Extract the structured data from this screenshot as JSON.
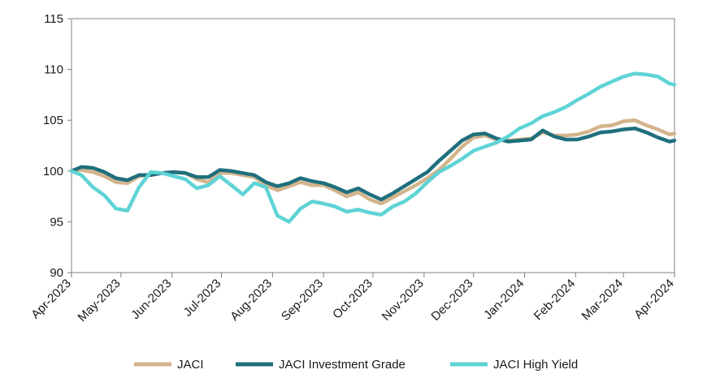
{
  "chart_data": {
    "type": "line",
    "title": "",
    "xlabel": "",
    "ylabel": "",
    "ylim": [
      90,
      115
    ],
    "yticks": [
      90,
      95,
      100,
      105,
      110,
      115
    ],
    "x_range": [
      "2023-04-01",
      "2024-04-01"
    ],
    "x_tick_labels": [
      "Apr-2023",
      "May-2023",
      "Jun-2023",
      "Jul-2023",
      "Aug-2023",
      "Sep-2023",
      "Oct-2023",
      "Nov-2023",
      "Dec-2023",
      "Jan-2024",
      "Feb-2024",
      "Mar-2024",
      "Apr-2024"
    ],
    "x_tick_dates": [
      "2023-04-01",
      "2023-05-01",
      "2023-06-01",
      "2023-07-01",
      "2023-08-01",
      "2023-09-01",
      "2023-10-01",
      "2023-11-01",
      "2023-12-01",
      "2024-01-01",
      "2024-02-01",
      "2024-03-01",
      "2024-04-01"
    ],
    "grid": false,
    "legend_position": "bottom",
    "series": [
      {
        "name": "JACI",
        "color": "#d3b48c",
        "points": [
          [
            "2023-04-01",
            100.0
          ],
          [
            "2023-04-07",
            100.1
          ],
          [
            "2023-04-14",
            99.9
          ],
          [
            "2023-04-21",
            99.5
          ],
          [
            "2023-04-28",
            98.9
          ],
          [
            "2023-05-05",
            98.8
          ],
          [
            "2023-05-12",
            99.5
          ],
          [
            "2023-05-19",
            99.6
          ],
          [
            "2023-05-26",
            99.8
          ],
          [
            "2023-06-02",
            99.9
          ],
          [
            "2023-06-09",
            99.8
          ],
          [
            "2023-06-16",
            99.2
          ],
          [
            "2023-06-23",
            98.9
          ],
          [
            "2023-06-30",
            99.8
          ],
          [
            "2023-07-07",
            99.8
          ],
          [
            "2023-07-14",
            99.6
          ],
          [
            "2023-07-21",
            99.4
          ],
          [
            "2023-07-28",
            98.6
          ],
          [
            "2023-08-04",
            98.1
          ],
          [
            "2023-08-11",
            98.5
          ],
          [
            "2023-08-18",
            98.9
          ],
          [
            "2023-08-25",
            98.6
          ],
          [
            "2023-09-01",
            98.6
          ],
          [
            "2023-09-08",
            98.1
          ],
          [
            "2023-09-15",
            97.5
          ],
          [
            "2023-09-22",
            97.9
          ],
          [
            "2023-09-29",
            97.2
          ],
          [
            "2023-10-06",
            96.8
          ],
          [
            "2023-10-13",
            97.4
          ],
          [
            "2023-10-20",
            98.0
          ],
          [
            "2023-10-27",
            98.6
          ],
          [
            "2023-11-03",
            99.3
          ],
          [
            "2023-11-10",
            100.1
          ],
          [
            "2023-11-17",
            101.2
          ],
          [
            "2023-11-24",
            102.4
          ],
          [
            "2023-12-01",
            103.3
          ],
          [
            "2023-12-08",
            103.5
          ],
          [
            "2023-12-15",
            103.1
          ],
          [
            "2023-12-22",
            103.0
          ],
          [
            "2023-12-29",
            103.1
          ],
          [
            "2024-01-05",
            103.2
          ],
          [
            "2024-01-12",
            103.8
          ],
          [
            "2024-01-19",
            103.5
          ],
          [
            "2024-01-26",
            103.5
          ],
          [
            "2024-02-02",
            103.6
          ],
          [
            "2024-02-09",
            103.9
          ],
          [
            "2024-02-16",
            104.4
          ],
          [
            "2024-02-23",
            104.5
          ],
          [
            "2024-03-01",
            104.9
          ],
          [
            "2024-03-08",
            105.0
          ],
          [
            "2024-03-15",
            104.5
          ],
          [
            "2024-03-22",
            104.1
          ],
          [
            "2024-03-29",
            103.6
          ],
          [
            "2024-04-01",
            103.7
          ]
        ]
      },
      {
        "name": "JACI Investment Grade",
        "color": "#1f6f7d",
        "points": [
          [
            "2023-04-01",
            100.0
          ],
          [
            "2023-04-07",
            100.4
          ],
          [
            "2023-04-14",
            100.3
          ],
          [
            "2023-04-21",
            99.9
          ],
          [
            "2023-04-28",
            99.3
          ],
          [
            "2023-05-05",
            99.1
          ],
          [
            "2023-05-12",
            99.6
          ],
          [
            "2023-05-19",
            99.6
          ],
          [
            "2023-05-26",
            99.8
          ],
          [
            "2023-06-02",
            99.9
          ],
          [
            "2023-06-09",
            99.8
          ],
          [
            "2023-06-16",
            99.4
          ],
          [
            "2023-06-23",
            99.4
          ],
          [
            "2023-06-30",
            100.1
          ],
          [
            "2023-07-07",
            100.0
          ],
          [
            "2023-07-14",
            99.8
          ],
          [
            "2023-07-21",
            99.6
          ],
          [
            "2023-07-28",
            98.9
          ],
          [
            "2023-08-04",
            98.5
          ],
          [
            "2023-08-11",
            98.8
          ],
          [
            "2023-08-18",
            99.3
          ],
          [
            "2023-08-25",
            99.0
          ],
          [
            "2023-09-01",
            98.8
          ],
          [
            "2023-09-08",
            98.4
          ],
          [
            "2023-09-15",
            97.9
          ],
          [
            "2023-09-22",
            98.3
          ],
          [
            "2023-09-29",
            97.7
          ],
          [
            "2023-10-06",
            97.2
          ],
          [
            "2023-10-13",
            97.8
          ],
          [
            "2023-10-20",
            98.5
          ],
          [
            "2023-10-27",
            99.2
          ],
          [
            "2023-11-03",
            99.9
          ],
          [
            "2023-11-10",
            101.0
          ],
          [
            "2023-11-17",
            102.0
          ],
          [
            "2023-11-24",
            103.0
          ],
          [
            "2023-12-01",
            103.6
          ],
          [
            "2023-12-08",
            103.7
          ],
          [
            "2023-12-15",
            103.2
          ],
          [
            "2023-12-22",
            102.9
          ],
          [
            "2023-12-29",
            103.0
          ],
          [
            "2024-01-05",
            103.1
          ],
          [
            "2024-01-12",
            104.0
          ],
          [
            "2024-01-19",
            103.4
          ],
          [
            "2024-01-26",
            103.1
          ],
          [
            "2024-02-02",
            103.1
          ],
          [
            "2024-02-09",
            103.4
          ],
          [
            "2024-02-16",
            103.8
          ],
          [
            "2024-02-23",
            103.9
          ],
          [
            "2024-03-01",
            104.1
          ],
          [
            "2024-03-08",
            104.2
          ],
          [
            "2024-03-15",
            103.8
          ],
          [
            "2024-03-22",
            103.3
          ],
          [
            "2024-03-29",
            102.9
          ],
          [
            "2024-04-01",
            103.0
          ]
        ]
      },
      {
        "name": "JACI High Yield",
        "color": "#5fd3d5",
        "points": [
          [
            "2023-04-01",
            100.0
          ],
          [
            "2023-04-07",
            99.6
          ],
          [
            "2023-04-14",
            98.4
          ],
          [
            "2023-04-21",
            97.6
          ],
          [
            "2023-04-28",
            96.3
          ],
          [
            "2023-05-05",
            96.1
          ],
          [
            "2023-05-12",
            98.4
          ],
          [
            "2023-05-19",
            99.9
          ],
          [
            "2023-05-26",
            99.8
          ],
          [
            "2023-06-02",
            99.5
          ],
          [
            "2023-06-09",
            99.2
          ],
          [
            "2023-06-16",
            98.3
          ],
          [
            "2023-06-23",
            98.6
          ],
          [
            "2023-06-30",
            99.5
          ],
          [
            "2023-07-07",
            98.6
          ],
          [
            "2023-07-14",
            97.7
          ],
          [
            "2023-07-21",
            98.8
          ],
          [
            "2023-07-28",
            98.4
          ],
          [
            "2023-08-04",
            95.6
          ],
          [
            "2023-08-11",
            95.0
          ],
          [
            "2023-08-18",
            96.3
          ],
          [
            "2023-08-25",
            97.0
          ],
          [
            "2023-09-01",
            96.8
          ],
          [
            "2023-09-08",
            96.5
          ],
          [
            "2023-09-15",
            96.0
          ],
          [
            "2023-09-22",
            96.2
          ],
          [
            "2023-09-29",
            95.9
          ],
          [
            "2023-10-06",
            95.7
          ],
          [
            "2023-10-13",
            96.5
          ],
          [
            "2023-10-20",
            97.0
          ],
          [
            "2023-10-27",
            97.8
          ],
          [
            "2023-11-03",
            98.9
          ],
          [
            "2023-11-10",
            99.9
          ],
          [
            "2023-11-17",
            100.5
          ],
          [
            "2023-11-24",
            101.2
          ],
          [
            "2023-12-01",
            102.0
          ],
          [
            "2023-12-08",
            102.4
          ],
          [
            "2023-12-15",
            102.8
          ],
          [
            "2023-12-22",
            103.4
          ],
          [
            "2023-12-29",
            104.2
          ],
          [
            "2024-01-05",
            104.7
          ],
          [
            "2024-01-12",
            105.4
          ],
          [
            "2024-01-19",
            105.8
          ],
          [
            "2024-01-26",
            106.3
          ],
          [
            "2024-02-02",
            107.0
          ],
          [
            "2024-02-09",
            107.6
          ],
          [
            "2024-02-16",
            108.3
          ],
          [
            "2024-02-23",
            108.8
          ],
          [
            "2024-03-01",
            109.3
          ],
          [
            "2024-03-08",
            109.6
          ],
          [
            "2024-03-15",
            109.5
          ],
          [
            "2024-03-22",
            109.3
          ],
          [
            "2024-03-29",
            108.6
          ],
          [
            "2024-04-01",
            108.5
          ]
        ]
      }
    ]
  }
}
